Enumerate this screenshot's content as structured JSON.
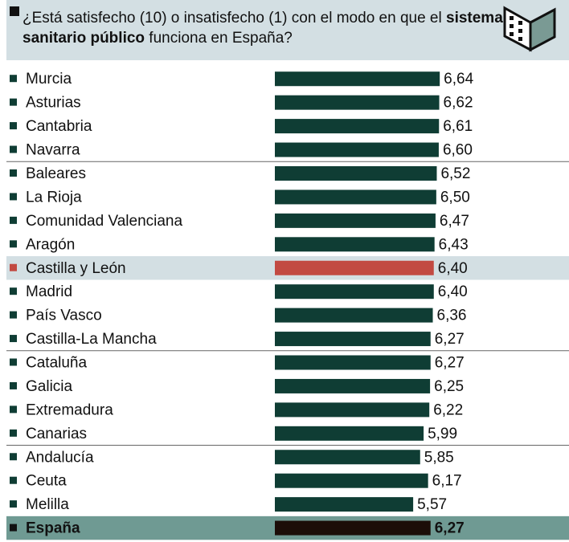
{
  "chart_data": {
    "type": "bar",
    "title_segments": [
      "¿Está satisfecho (10) o insatisfecho (1) con el modo en que el ",
      "sistema sanitario público",
      " funciona en España?"
    ],
    "categories": [
      "Murcia",
      "Asturias",
      "Cantabria",
      "Navarra",
      "Baleares",
      "La Rioja",
      "Comunidad Valenciana",
      "Aragón",
      "Castilla y León",
      "Madrid",
      "País Vasco",
      "Castilla-La Mancha",
      "Cataluña",
      "Galicia",
      "Extremadura",
      "Canarias",
      "Andalucía",
      "Ceuta",
      "Melilla"
    ],
    "values": [
      6.64,
      6.62,
      6.61,
      6.6,
      6.52,
      6.5,
      6.47,
      6.43,
      6.4,
      6.4,
      6.36,
      6.27,
      6.27,
      6.25,
      6.22,
      5.99,
      5.85,
      6.17,
      5.57
    ],
    "value_labels": [
      "6,64",
      "6,62",
      "6,61",
      "6,60",
      "6,52",
      "6,50",
      "6,47",
      "6,43",
      "6,40",
      "6,40",
      "6,36",
      "6,27",
      "6,27",
      "6,25",
      "6,22",
      "5,99",
      "5,85",
      "6,17",
      "5,57"
    ],
    "color": "#0f3d34",
    "highlight": {
      "index": 8,
      "color": "#c24a42"
    },
    "total": {
      "name": "España",
      "value": 6.27,
      "value_label": "6,27",
      "color": "#1c0d08"
    }
  }
}
